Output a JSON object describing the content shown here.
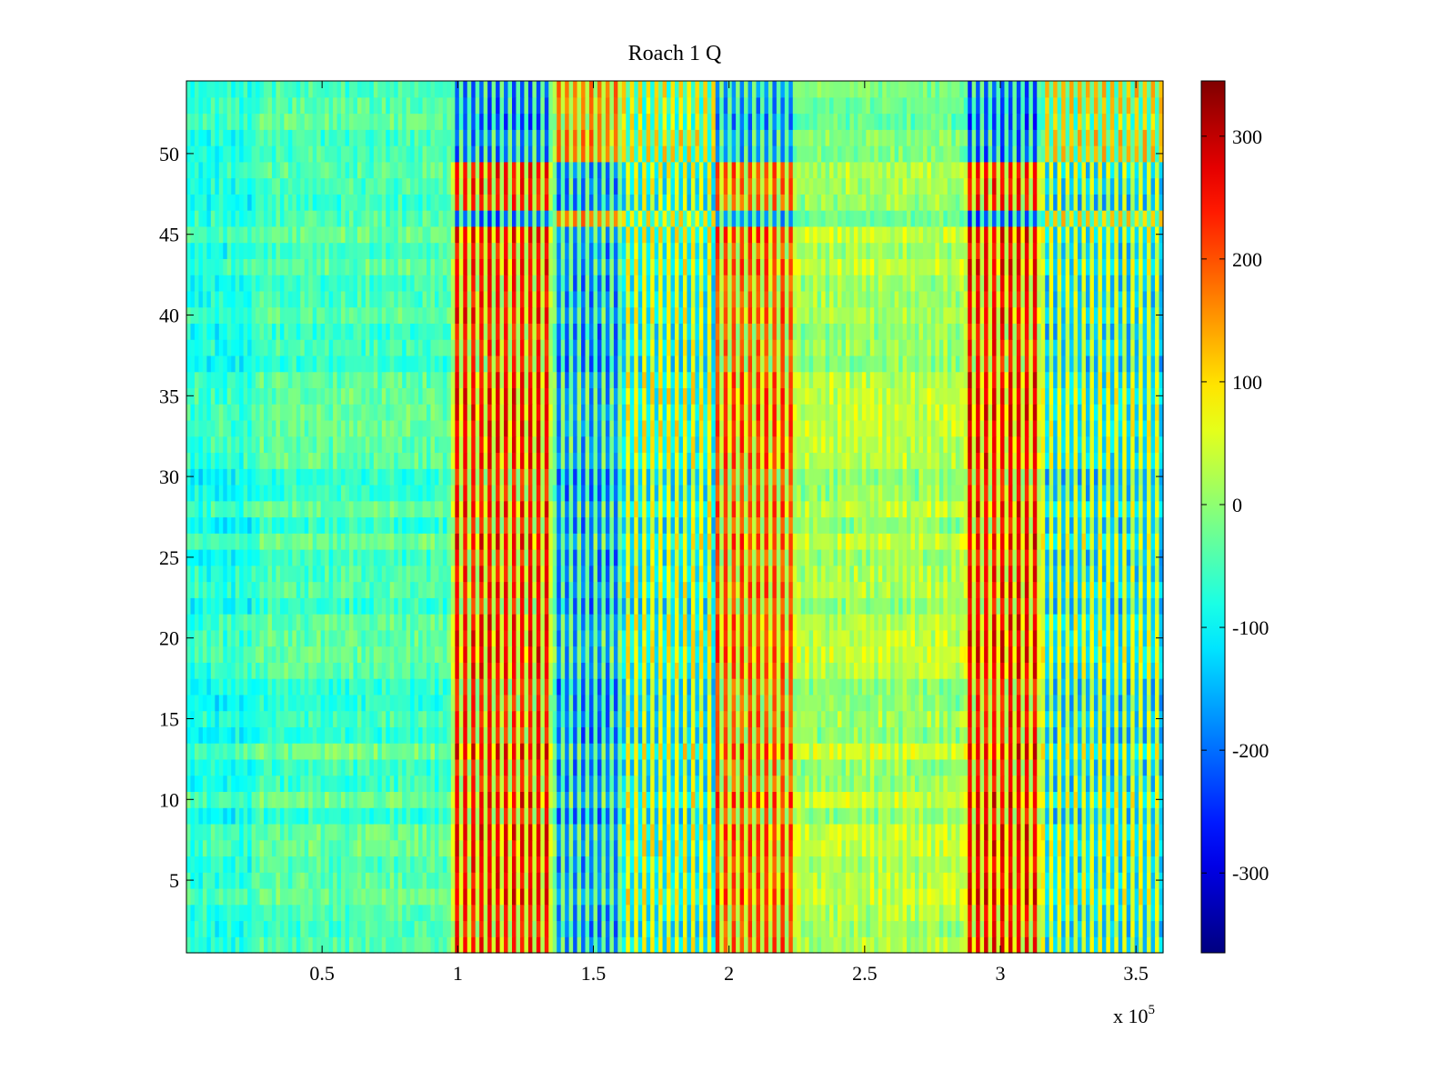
{
  "chart_data": {
    "type": "heatmap",
    "title": "Roach 1 Q",
    "xlabel": "",
    "ylabel": "",
    "x_multiplier_label": "x 10",
    "x_multiplier_exponent": "5",
    "xlim": [
      0,
      3.6
    ],
    "ylim": [
      0.5,
      54.5
    ],
    "x_ticks": [
      0.5,
      1,
      1.5,
      2,
      2.5,
      3,
      3.5
    ],
    "x_tick_labels": [
      "0.5",
      "1",
      "1.5",
      "2",
      "2.5",
      "3",
      "3.5"
    ],
    "y_ticks": [
      5,
      10,
      15,
      20,
      25,
      30,
      35,
      40,
      45,
      50
    ],
    "y_tick_labels": [
      "5",
      "10",
      "15",
      "20",
      "25",
      "30",
      "35",
      "40",
      "45",
      "50"
    ],
    "colorbar": {
      "colormap": "jet",
      "clim": [
        -365,
        345
      ],
      "ticks": [
        -300,
        -200,
        -100,
        0,
        100,
        200,
        300
      ],
      "tick_labels": [
        "-300",
        "-200",
        "-100",
        "0",
        "100",
        "200",
        "300"
      ]
    },
    "segments": [
      {
        "x0": 0.0,
        "x1": 0.25,
        "mean": -75,
        "stripe": 15
      },
      {
        "x0": 0.25,
        "x1": 0.97,
        "mean": -45,
        "stripe": 10
      },
      {
        "x0": 0.97,
        "x1": 1.35,
        "mean": 140,
        "stripe": 110
      },
      {
        "x0": 1.35,
        "x1": 1.6,
        "mean": -110,
        "stripe": 90
      },
      {
        "x0": 1.6,
        "x1": 1.95,
        "mean": -20,
        "stripe": 100
      },
      {
        "x0": 1.95,
        "x1": 2.25,
        "mean": 120,
        "stripe": 90
      },
      {
        "x0": 2.25,
        "x1": 2.87,
        "mean": 20,
        "stripe": 15
      },
      {
        "x0": 2.87,
        "x1": 3.15,
        "mean": 150,
        "stripe": 110
      },
      {
        "x0": 3.15,
        "x1": 3.6,
        "mean": -40,
        "stripe": 100
      }
    ],
    "inverted_rows": [
      46,
      50,
      51,
      52,
      53,
      54
    ]
  }
}
